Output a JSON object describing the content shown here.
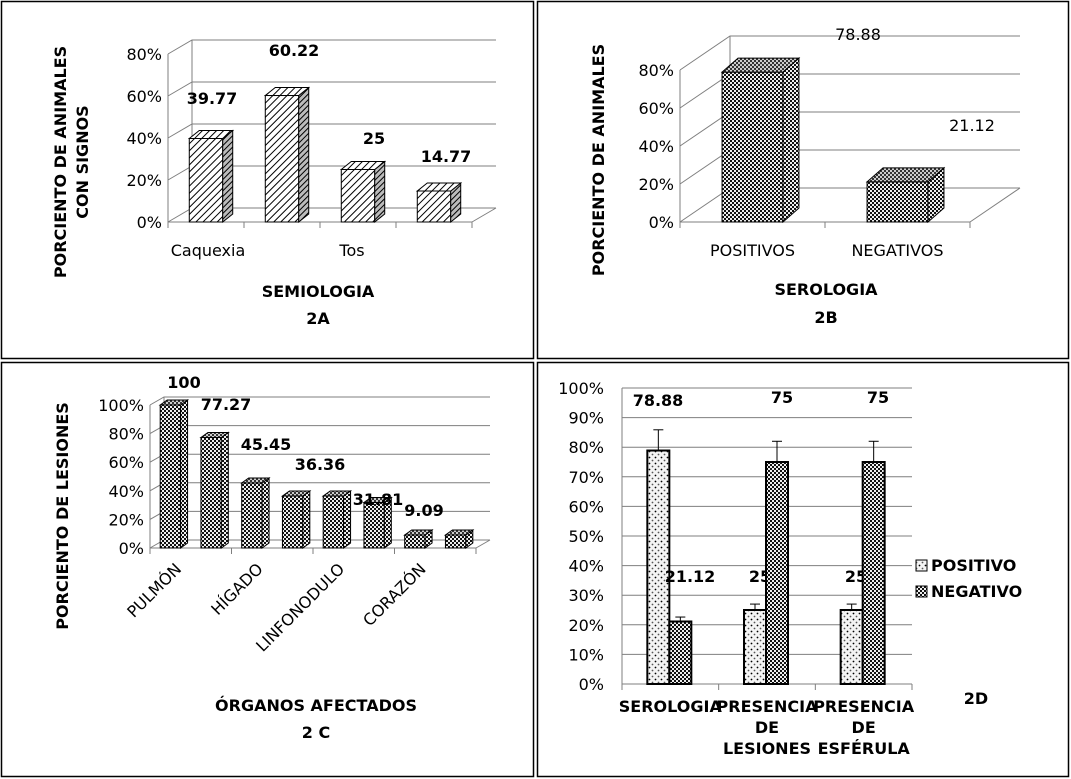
{
  "colors": {
    "border": "#000000",
    "grid": "#7f7f7f",
    "background": "#ffffff"
  },
  "chart_data": [
    {
      "id": "2A",
      "type": "bar",
      "style": "3d",
      "panel_caption": "2A",
      "xlabel": "SEMIOLOGIA",
      "ylabel": [
        "PORCIENTO DE ANIMALES",
        "CON SIGNOS"
      ],
      "categories": [
        "Caquexia",
        "",
        "Tos",
        ""
      ],
      "values": [
        39.77,
        60.22,
        25,
        14.77
      ],
      "value_labels": [
        "39.77",
        "60.22",
        "25",
        "14.77"
      ],
      "yticks": [
        "0%",
        "20%",
        "40%",
        "60%",
        "80%"
      ],
      "ylim": [
        0,
        80
      ],
      "pattern": "diagonal-hatch"
    },
    {
      "id": "2B",
      "type": "bar",
      "style": "3d",
      "panel_caption": "2B",
      "xlabel": "SEROLOGIA",
      "ylabel": [
        "PORCIENTO DE ANIMALES"
      ],
      "categories": [
        "POSITIVOS",
        "NEGATIVOS"
      ],
      "values": [
        78.88,
        21.12
      ],
      "value_labels": [
        "78.88",
        "21.12"
      ],
      "yticks": [
        "0%",
        "20%",
        "40%",
        "60%",
        "80%"
      ],
      "ylim": [
        0,
        80
      ],
      "pattern": "crosshatch-dark"
    },
    {
      "id": "2C",
      "type": "bar",
      "style": "3d",
      "panel_caption": "2 C",
      "xlabel": "ÓRGANOS AFECTADOS",
      "ylabel": [
        "PORCIENTO DE LESIONES"
      ],
      "categories": [
        "PULMÓN",
        "",
        "HÍGADO",
        "",
        "LINFONODULO",
        "",
        "CORAZÓN",
        ""
      ],
      "values": [
        100,
        77.27,
        45.45,
        36.36,
        36.36,
        31.81,
        9.09,
        9.09
      ],
      "value_labels": [
        "100",
        "77.27",
        "45.45",
        "36.36",
        "",
        "31.81",
        "9.09",
        ""
      ],
      "yticks": [
        "0%",
        "20%",
        "40%",
        "60%",
        "80%",
        "100%"
      ],
      "ylim": [
        0,
        100
      ],
      "pattern": "crosshatch-dark"
    },
    {
      "id": "2D",
      "type": "bar",
      "style": "grouped-with-error-bars",
      "panel_caption": "2D",
      "categories": [
        [
          "SEROLOGIA"
        ],
        [
          "PRESENCIA",
          "DE",
          "LESIONES"
        ],
        [
          "PRESENCIA",
          "DE",
          "ESFÉRULA"
        ]
      ],
      "series": [
        {
          "name": "POSITIVO",
          "values": [
            78.88,
            25,
            25
          ],
          "value_labels": [
            "78.88",
            "25",
            "25"
          ],
          "error": [
            7,
            2,
            2
          ],
          "pattern": "dotted-light"
        },
        {
          "name": "NEGATIVO",
          "values": [
            21.12,
            75,
            75
          ],
          "value_labels": [
            "21.12",
            "75",
            "75"
          ],
          "error": [
            1.5,
            7,
            7
          ],
          "pattern": "crosshatch-dark"
        }
      ],
      "yticks": [
        "0%",
        "10%",
        "20%",
        "30%",
        "40%",
        "50%",
        "60%",
        "70%",
        "80%",
        "90%",
        "100%"
      ],
      "ylim": [
        0,
        100
      ],
      "legend_position": "right"
    }
  ]
}
